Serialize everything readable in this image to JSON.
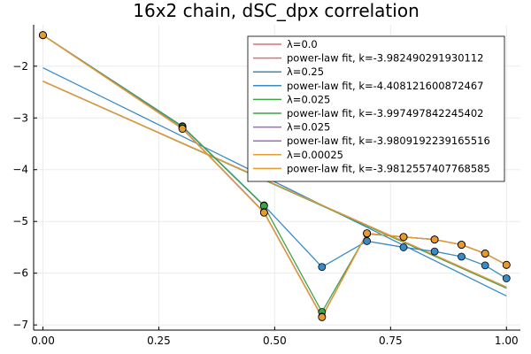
{
  "chart_data": {
    "type": "line",
    "title": "16x2 chain, dSC_dpx correlation",
    "xlabel": "",
    "ylabel": "",
    "xlim": [
      -0.02,
      1.03
    ],
    "ylim": [
      -7.1,
      -1.2
    ],
    "x_ticks": [
      0.0,
      0.25,
      0.5,
      0.75,
      1.0
    ],
    "x_tick_labels": [
      "0.00",
      "0.25",
      "0.50",
      "0.75",
      "1.00"
    ],
    "y_ticks": [
      -2,
      -3,
      -4,
      -5,
      -6,
      -7
    ],
    "y_tick_labels": [
      "−2",
      "−3",
      "−4",
      "−5",
      "−6",
      "−7"
    ],
    "grid": true,
    "legend_position": "top-right",
    "x": [
      0.0,
      0.301,
      0.477,
      0.602,
      0.699,
      0.778,
      0.845,
      0.903,
      0.954,
      1.0
    ],
    "series": [
      {
        "name": "λ=0.0",
        "color": "#e26f6f",
        "values": [
          -1.4,
          -3.21,
          -4.83,
          -6.85,
          -5.23,
          -5.3,
          -5.35,
          -5.45,
          -5.62,
          -5.84
        ]
      },
      {
        "name": "power-law fit, k=-3.982490291930112",
        "color": "#e26f6f",
        "fit": [
          -2.29,
          -6.27
        ]
      },
      {
        "name": "λ=0.25",
        "color": "#3a8bc5",
        "values": [
          -1.4,
          -3.16,
          -4.69,
          -5.88,
          -5.38,
          -5.5,
          -5.58,
          -5.68,
          -5.85,
          -6.1
        ]
      },
      {
        "name": "power-law fit, k=-4.408121600872467",
        "color": "#3a8bc5",
        "fit": [
          -2.03,
          -6.44
        ]
      },
      {
        "name": "λ=0.025",
        "color": "#3fa446",
        "values": [
          -1.4,
          -3.17,
          -4.7,
          -6.75,
          -5.24,
          -5.3,
          -5.35,
          -5.45,
          -5.62,
          -5.84
        ]
      },
      {
        "name": "power-law fit, k=-3.997497842245402",
        "color": "#3fa446",
        "fit": [
          -2.29,
          -6.29
        ]
      },
      {
        "name": "λ=0.025",
        "color": "#9a6dbd",
        "values": [
          -1.4,
          -3.2,
          -4.82,
          -6.84,
          -5.23,
          -5.3,
          -5.35,
          -5.45,
          -5.62,
          -5.84
        ]
      },
      {
        "name": "power-law fit, k=-3.9809192239165516",
        "color": "#9a6dbd",
        "fit": [
          -2.29,
          -6.27
        ]
      },
      {
        "name": "λ=0.00025",
        "color": "#e69b2f",
        "values": [
          -1.4,
          -3.21,
          -4.83,
          -6.85,
          -5.23,
          -5.3,
          -5.35,
          -5.45,
          -5.62,
          -5.84
        ]
      },
      {
        "name": "power-law fit, k=-3.9812557407768585",
        "color": "#e69b2f",
        "fit": [
          -2.29,
          -6.27
        ]
      }
    ]
  }
}
